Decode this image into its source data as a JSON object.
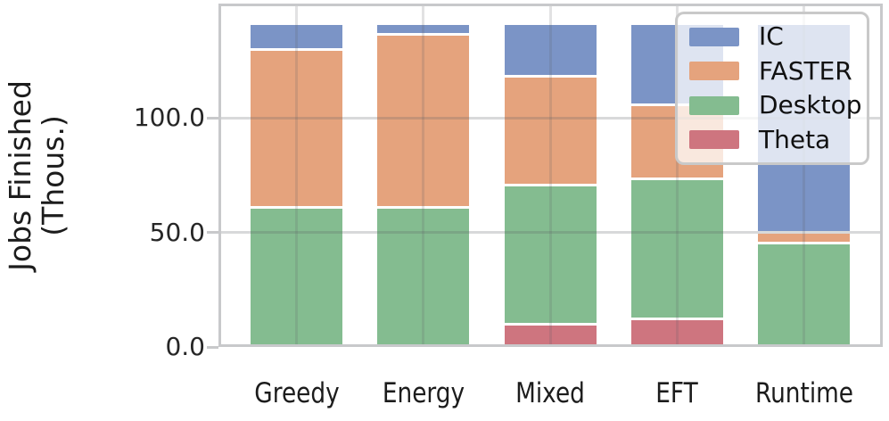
{
  "chart_data": {
    "type": "bar",
    "stacked": true,
    "title": "",
    "xlabel": "",
    "ylabel": "Jobs Finished (Thous.)",
    "ylabel_lines": [
      "Jobs Finished",
      "(Thous.)"
    ],
    "categories": [
      "Greedy",
      "Energy",
      "Mixed",
      "EFT",
      "Runtime"
    ],
    "series": [
      {
        "name": "Theta",
        "color": "#CE757F",
        "values": [
          0,
          0,
          10.5,
          13,
          0
        ]
      },
      {
        "name": "Desktop",
        "color": "#84BC90",
        "values": [
          61.5,
          61.5,
          61,
          61,
          46
        ]
      },
      {
        "name": "FASTER",
        "color": "#E5A37D",
        "values": [
          69,
          75.5,
          47.5,
          32.5,
          4.7
        ]
      },
      {
        "name": "IC",
        "color": "#7B94C6",
        "values": [
          11.5,
          5,
          23,
          35.5,
          91.3
        ]
      }
    ],
    "legend_order": [
      "IC",
      "FASTER",
      "Desktop",
      "Theta"
    ],
    "legend_position": "upper right",
    "yticks": [
      {
        "label": "0.0",
        "value": 0
      },
      {
        "label": "50.0",
        "value": 50
      },
      {
        "label": "100.0",
        "value": 100
      }
    ],
    "ylim": [
      0,
      150
    ],
    "grid": true,
    "colors": {
      "spine": "#c8c9cb",
      "grid": "rgba(92,97,102,0.24)",
      "text": "#262626",
      "background": "#ffffff"
    }
  }
}
